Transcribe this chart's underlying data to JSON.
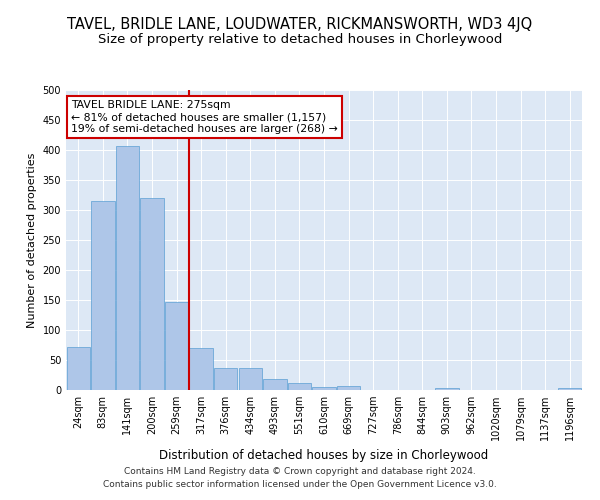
{
  "title": "TAVEL, BRIDLE LANE, LOUDWATER, RICKMANSWORTH, WD3 4JQ",
  "subtitle": "Size of property relative to detached houses in Chorleywood",
  "xlabel": "Distribution of detached houses by size in Chorleywood",
  "ylabel": "Number of detached properties",
  "categories": [
    "24sqm",
    "83sqm",
    "141sqm",
    "200sqm",
    "259sqm",
    "317sqm",
    "376sqm",
    "434sqm",
    "493sqm",
    "551sqm",
    "610sqm",
    "669sqm",
    "727sqm",
    "786sqm",
    "844sqm",
    "903sqm",
    "962sqm",
    "1020sqm",
    "1079sqm",
    "1137sqm",
    "1196sqm"
  ],
  "values": [
    72,
    315,
    407,
    320,
    147,
    70,
    36,
    36,
    18,
    11,
    5,
    6,
    0,
    0,
    0,
    4,
    0,
    0,
    0,
    0,
    3
  ],
  "bar_color": "#aec6e8",
  "bar_edge_color": "#5a9fd4",
  "vline_x_index": 4,
  "vline_color": "#cc0000",
  "annotation_text": "TAVEL BRIDLE LANE: 275sqm\n← 81% of detached houses are smaller (1,157)\n19% of semi-detached houses are larger (268) →",
  "annotation_box_color": "#ffffff",
  "annotation_box_edge": "#cc0000",
  "ylim": [
    0,
    500
  ],
  "yticks": [
    0,
    50,
    100,
    150,
    200,
    250,
    300,
    350,
    400,
    450,
    500
  ],
  "bg_color": "#dde8f5",
  "footer_line1": "Contains HM Land Registry data © Crown copyright and database right 2024.",
  "footer_line2": "Contains public sector information licensed under the Open Government Licence v3.0.",
  "title_fontsize": 10.5,
  "subtitle_fontsize": 9.5,
  "xlabel_fontsize": 8.5,
  "ylabel_fontsize": 8,
  "tick_fontsize": 7,
  "footer_fontsize": 6.5
}
